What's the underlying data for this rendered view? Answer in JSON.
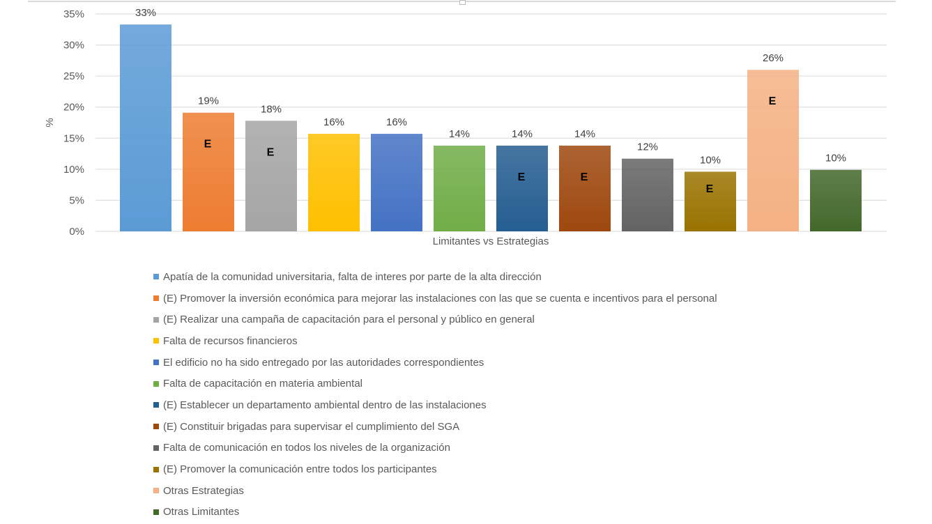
{
  "chart_data": {
    "type": "bar",
    "title": "",
    "xlabel": "Limitantes vs Estrategias",
    "ylabel": "%",
    "ylim": [
      0,
      35
    ],
    "yticks": [
      "0%",
      "5%",
      "10%",
      "15%",
      "20%",
      "25%",
      "30%",
      "35%"
    ],
    "grid": true,
    "legend_position": "bottom",
    "categories": [
      "Apatía de la comunidad universitaria, falta de interes por parte de la alta dirección",
      "(E) Promover la inversión económica para mejorar las instalaciones con las que se cuenta e incentivos para el personal",
      "(E) Realizar una campaña de capacitación para el personal y público en general",
      "Falta de recursos financieros",
      "El edificio no ha sido entregado por las autoridades correspondientes",
      "Falta de capacitación en materia ambiental",
      "(E) Establecer un departamento ambiental dentro de las instalaciones",
      "(E) Constituir brigadas para supervisar el cumplimiento del SGA",
      "Falta de comunicación en todos los niveles de la organización",
      "(E) Promover la comunicación entre todos los participantes",
      "Otras Estrategias",
      "Otras Limitantes"
    ],
    "values": [
      33.3,
      19.1,
      17.8,
      15.7,
      15.7,
      13.8,
      13.8,
      13.8,
      11.7,
      9.6,
      26.0,
      9.9
    ],
    "data_labels": [
      "33%",
      "19%",
      "18%",
      "16%",
      "16%",
      "14%",
      "14%",
      "14%",
      "12%",
      "10%",
      "26%",
      "10%"
    ],
    "bar_marks": [
      "",
      "E",
      "E",
      "",
      "",
      "",
      "E",
      "E",
      "",
      "E",
      "E",
      ""
    ],
    "colors": [
      "#5b9bd5",
      "#ed7d31",
      "#a5a5a5",
      "#ffc000",
      "#4472c4",
      "#70ad47",
      "#255e91",
      "#9e480e",
      "#636363",
      "#997300",
      "#f4b183",
      "#43682b"
    ]
  }
}
